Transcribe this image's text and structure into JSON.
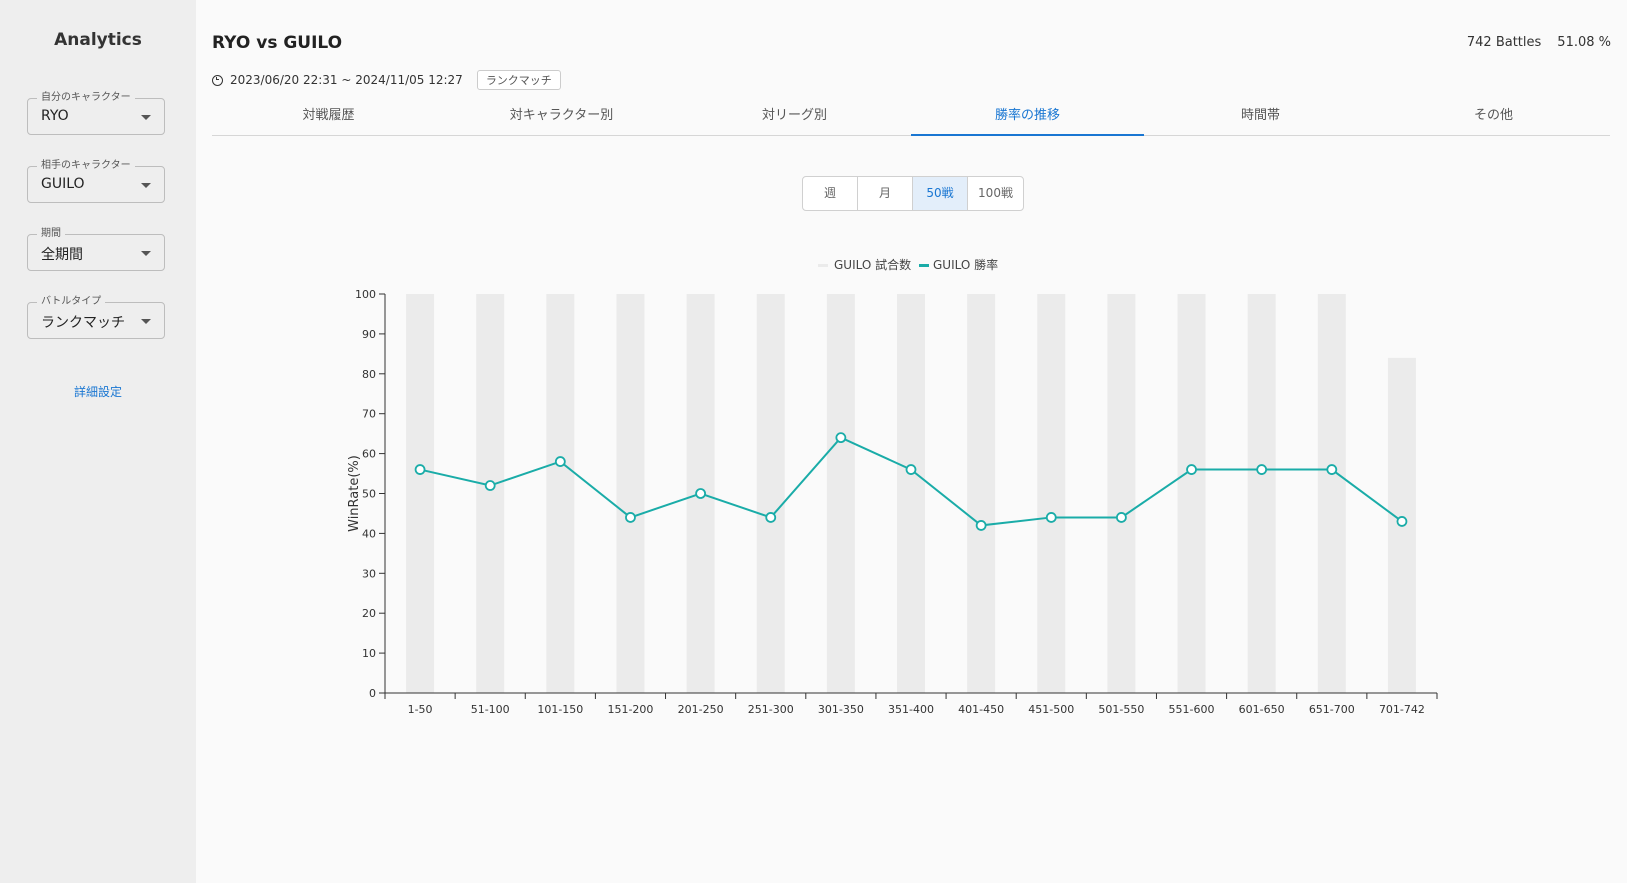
{
  "sidebar": {
    "title": "Analytics",
    "fields": [
      {
        "label": "自分のキャラクター",
        "value": "RYO"
      },
      {
        "label": "相手のキャラクター",
        "value": "GUILO"
      },
      {
        "label": "期間",
        "value": "全期間"
      },
      {
        "label": "バトルタイプ",
        "value": "ランクマッチ"
      }
    ],
    "advanced_link": "詳細設定"
  },
  "header": {
    "title": "RYO vs GUILO",
    "battles": "742 Battles",
    "win_rate": "51.08 %",
    "date_range": "2023/06/20 22:31 ~ 2024/11/05 12:27",
    "battle_type_chip": "ランクマッチ"
  },
  "tabs": [
    {
      "label": "対戦履歴",
      "active": false
    },
    {
      "label": "対キャラクター別",
      "active": false
    },
    {
      "label": "対リーグ別",
      "active": false
    },
    {
      "label": "勝率の推移",
      "active": true
    },
    {
      "label": "時間帯",
      "active": false
    },
    {
      "label": "その他",
      "active": false
    }
  ],
  "period_toggle": {
    "options": [
      "週",
      "月",
      "50戦",
      "100戦"
    ],
    "selected": "50戦"
  },
  "chart_data": {
    "type": "bar+line",
    "categories": [
      "1-50",
      "51-100",
      "101-150",
      "151-200",
      "201-250",
      "251-300",
      "301-350",
      "351-400",
      "401-450",
      "451-500",
      "501-550",
      "551-600",
      "601-650",
      "651-700",
      "701-742"
    ],
    "series": [
      {
        "name": "GUILO 試合数",
        "kind": "bar",
        "color": "#ebebeb",
        "values": [
          50,
          50,
          50,
          50,
          50,
          50,
          50,
          50,
          50,
          50,
          50,
          50,
          50,
          50,
          42
        ]
      },
      {
        "name": "GUILO 勝率",
        "kind": "line",
        "color": "#1aaca8",
        "values": [
          56,
          52,
          58,
          44,
          50,
          44,
          64,
          56,
          42,
          44,
          44,
          56,
          56,
          56,
          43
        ]
      }
    ],
    "ylabel": "WinRate(%)",
    "ylim": [
      0,
      100
    ],
    "yticks": [
      0,
      10,
      20,
      30,
      40,
      50,
      60,
      70,
      80,
      90,
      100
    ],
    "bar_scale_max": 50,
    "legend_position": "top-center",
    "grid": false
  }
}
